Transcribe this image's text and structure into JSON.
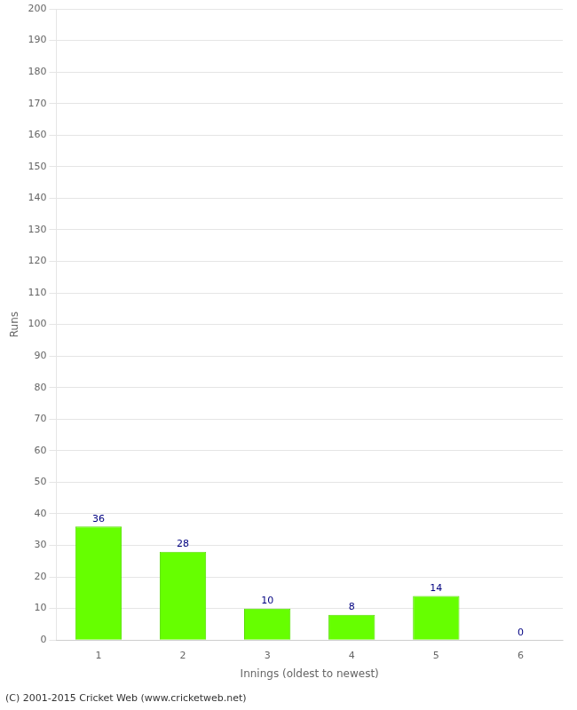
{
  "chart_data": {
    "type": "bar",
    "categories": [
      "1",
      "2",
      "3",
      "4",
      "5",
      "6"
    ],
    "values": [
      36,
      28,
      10,
      8,
      14,
      0
    ],
    "color": "#66ff00",
    "xlabel": "Innings (oldest to newest)",
    "ylabel": "Runs",
    "ylim": [
      0,
      200
    ],
    "yticks": [
      0,
      10,
      20,
      30,
      40,
      50,
      60,
      70,
      80,
      90,
      100,
      110,
      120,
      130,
      140,
      150,
      160,
      170,
      180,
      190,
      200
    ],
    "grid": true,
    "data_labels": true,
    "annotations": [
      "(C) 2001-2015 Cricket Web (www.cricketweb.net)"
    ]
  }
}
